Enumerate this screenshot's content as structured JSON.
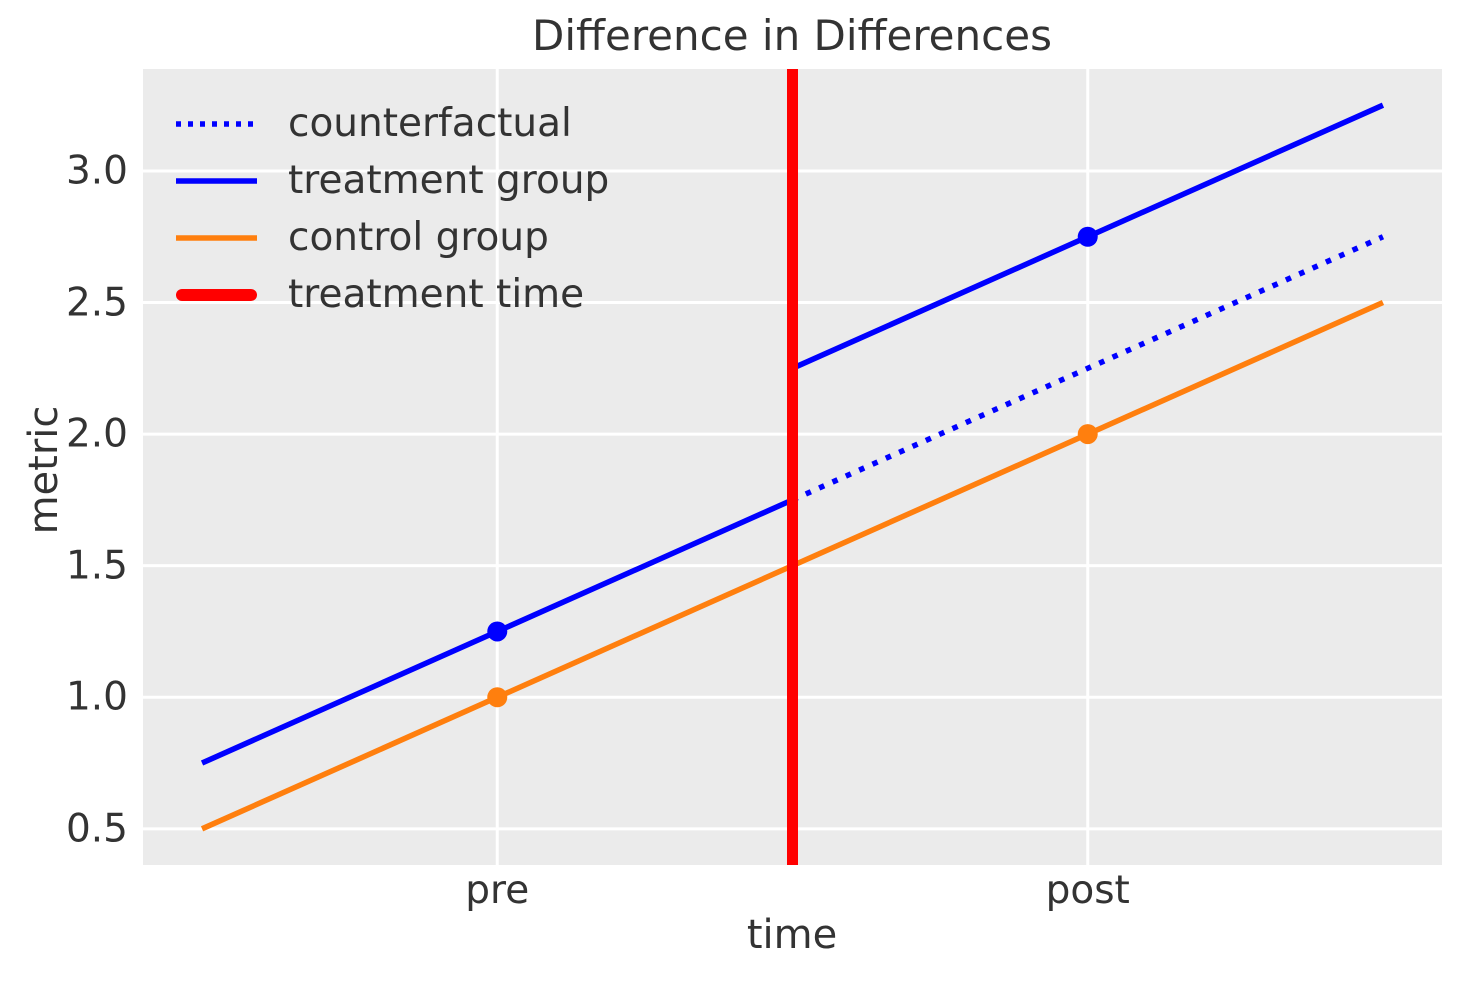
{
  "chart_data": {
    "type": "line",
    "title": "Difference in Differences",
    "xlabel": "time",
    "ylabel": "metric",
    "xlim": [
      -0.05,
      1.05
    ],
    "ylim": [
      0.3625,
      3.3875
    ],
    "yticks": [
      0.5,
      1.0,
      1.5,
      2.0,
      2.5,
      3.0
    ],
    "ytick_labels": [
      "0.5",
      "1.0",
      "1.5",
      "2.0",
      "2.5",
      "3.0"
    ],
    "xticks": [
      0.25,
      0.75
    ],
    "xtick_labels": [
      "pre",
      "post"
    ],
    "grid": true,
    "plot_background": "#ebebeb",
    "grid_color": "#ffffff",
    "text_color": "#333333",
    "legend_position": "upper left",
    "legend_frame": false,
    "series": [
      {
        "name": "counterfactual",
        "color": "#0000ff",
        "style": "dotted",
        "linewidth": 5.5,
        "segments": [
          [
            [
              0.5,
              1.75
            ],
            [
              1.0,
              2.75
            ]
          ]
        ],
        "markers": []
      },
      {
        "name": "treatment group",
        "color": "#0000ff",
        "style": "solid",
        "linewidth": 5.5,
        "segments": [
          [
            [
              0.0,
              0.75
            ],
            [
              0.5,
              1.75
            ]
          ],
          [
            [
              0.5,
              2.25
            ],
            [
              1.0,
              3.25
            ]
          ]
        ],
        "markers": [
          [
            0.25,
            1.25
          ],
          [
            0.75,
            2.75
          ]
        ]
      },
      {
        "name": "control group",
        "color": "#ff7f0e",
        "style": "solid",
        "linewidth": 5.5,
        "segments": [
          [
            [
              0.0,
              0.5
            ],
            [
              1.0,
              2.5
            ]
          ]
        ],
        "markers": [
          [
            0.25,
            1.0
          ],
          [
            0.75,
            2.0
          ]
        ]
      },
      {
        "name": "treatment time",
        "color": "#ff0000",
        "style": "solid",
        "linewidth": 11,
        "vline": 0.5,
        "markers": []
      }
    ],
    "marker_radius": 10
  }
}
